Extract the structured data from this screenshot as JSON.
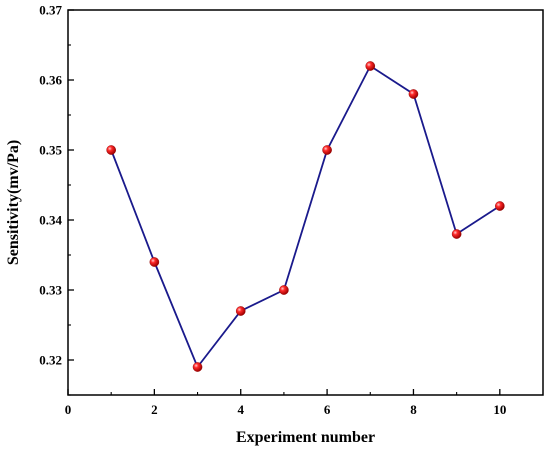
{
  "chart_data": {
    "type": "line",
    "title": "",
    "xlabel": "Experiment number",
    "ylabel": "Sensitivity(mv/Pa)",
    "xlim": [
      0,
      11
    ],
    "ylim": [
      0.315,
      0.37
    ],
    "xticks": [
      0,
      2,
      4,
      6,
      8,
      10
    ],
    "xtick_labels": [
      "0",
      "2",
      "4",
      "6",
      "8",
      "10"
    ],
    "yticks": [
      0.32,
      0.33,
      0.34,
      0.35,
      0.36,
      0.37
    ],
    "ytick_labels": [
      "0.32",
      "0.33",
      "0.34",
      "0.35",
      "0.36",
      "0.37"
    ],
    "grid": false,
    "legend": "none",
    "series": [
      {
        "x": [
          1,
          2,
          3,
          4,
          5,
          6,
          7,
          8,
          9,
          10
        ],
        "y": [
          0.35,
          0.334,
          0.319,
          0.327,
          0.33,
          0.35,
          0.362,
          0.358,
          0.338,
          0.342
        ],
        "line_color": "#1a1a8c",
        "marker_color": "#e8101a"
      }
    ]
  }
}
